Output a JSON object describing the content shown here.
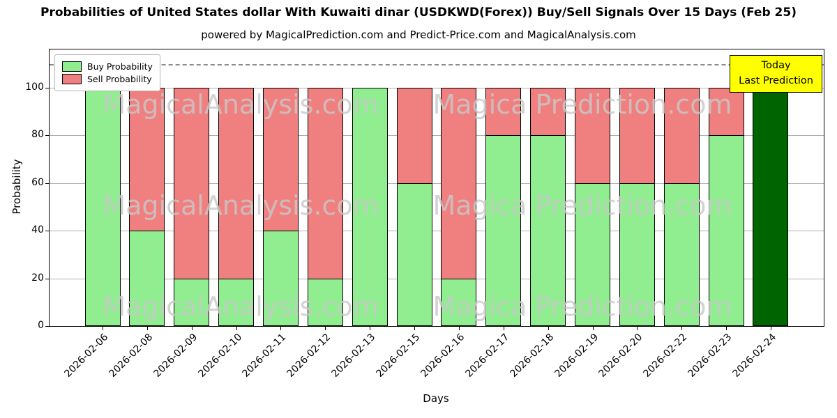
{
  "title": "Probabilities of United States dollar With Kuwaiti dinar (USDKWD(Forex)) Buy/Sell Signals Over 15 Days (Feb 25)",
  "subtitle": "powered by MagicalPrediction.com and Predict-Price.com and MagicalAnalysis.com",
  "chart_data": {
    "type": "bar",
    "stacked": true,
    "xlabel": "Days",
    "ylabel": "Probability",
    "ylim": [
      0,
      116
    ],
    "yticks": [
      0,
      20,
      40,
      60,
      80,
      100
    ],
    "grid": "horizontal",
    "dashed_line_y": 110,
    "legend_position": "upper left",
    "categories": [
      "2026-02-06",
      "2026-02-08",
      "2026-02-09",
      "2026-02-10",
      "2026-02-11",
      "2026-02-12",
      "2026-02-13",
      "2026-02-15",
      "2026-02-16",
      "2026-02-17",
      "2026-02-18",
      "2026-02-19",
      "2026-02-20",
      "2026-02-22",
      "2026-02-23",
      "2026-02-24"
    ],
    "series": [
      {
        "name": "Buy Probability",
        "color": "#90ee90",
        "values": [
          100,
          40,
          20,
          20,
          40,
          20,
          100,
          60,
          20,
          80,
          80,
          60,
          60,
          60,
          80,
          100
        ]
      },
      {
        "name": "Sell Probability",
        "color": "#f08080",
        "values": [
          0,
          60,
          80,
          80,
          60,
          80,
          0,
          40,
          80,
          20,
          20,
          40,
          40,
          40,
          20,
          0
        ]
      }
    ],
    "today_index": 15,
    "today_color": "#006400",
    "annotation_lines": [
      "Today",
      "Last Prediction"
    ],
    "annotation_bg": "#ffff00",
    "watermarks": [
      "MagicalAnalysis.com",
      "Magica Prediction.com"
    ]
  }
}
